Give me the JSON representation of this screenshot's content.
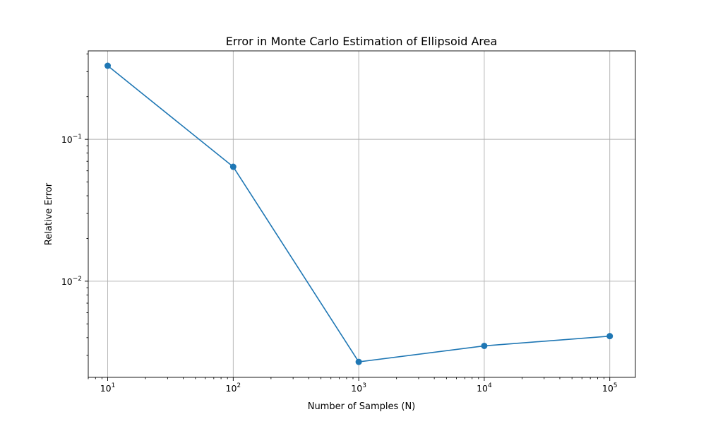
{
  "chart_data": {
    "type": "line",
    "title": "Error in Monte Carlo Estimation of Ellipsoid Area",
    "xlabel": "Number of Samples (N)",
    "ylabel": "Relative Error",
    "x_scale": "log",
    "y_scale": "log",
    "xlim": [
      7,
      160000
    ],
    "ylim": [
      0.0021,
      0.42
    ],
    "grid": true,
    "x_ticks": [
      {
        "value": 10,
        "base": "10",
        "exp": "1"
      },
      {
        "value": 100,
        "base": "10",
        "exp": "2"
      },
      {
        "value": 1000,
        "base": "10",
        "exp": "3"
      },
      {
        "value": 10000,
        "base": "10",
        "exp": "4"
      },
      {
        "value": 100000,
        "base": "10",
        "exp": "5"
      }
    ],
    "y_ticks": [
      {
        "value": 0.01,
        "base": "10",
        "exp": "−2"
      },
      {
        "value": 0.1,
        "base": "10",
        "exp": "−1"
      }
    ],
    "series": [
      {
        "color": "#1f77b4",
        "marker": "circle",
        "x": [
          10,
          100,
          1000,
          10000,
          100000
        ],
        "y": [
          0.33,
          0.064,
          0.0027,
          0.0035,
          0.0041
        ]
      }
    ]
  }
}
